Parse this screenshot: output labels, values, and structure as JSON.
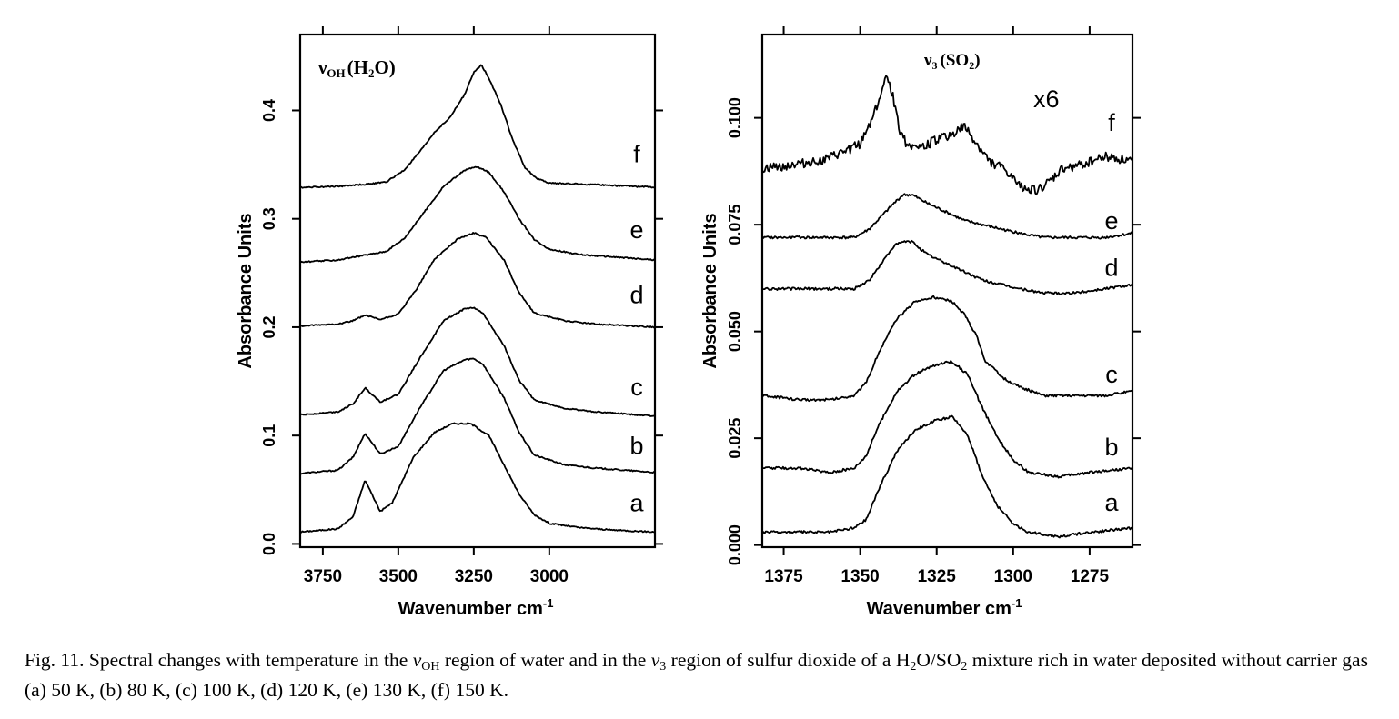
{
  "chart_data": [
    {
      "type": "line",
      "panel": "left",
      "title_parts": {
        "sym": "ν",
        "sub": "OH",
        "pre": "(H",
        "sub2": "2",
        "post": "O)"
      },
      "xlabel": "Wavenumber cm",
      "xlabel_sup": "-1",
      "ylabel": "Absorbance Units",
      "xlim": [
        3825,
        2650
      ],
      "ylim": [
        -0.003,
        0.47
      ],
      "x_ticks": [
        3750,
        3500,
        3250,
        3000
      ],
      "x_tick_labels": [
        "3750",
        "3500",
        "3250",
        "3000"
      ],
      "y_ticks": [
        0.0,
        0.1,
        0.2,
        0.3,
        0.4
      ],
      "y_tick_labels": [
        "0.0",
        "0.1",
        "0.2",
        "0.3",
        "0.4"
      ],
      "series": [
        {
          "name": "a",
          "label_y": 0.03,
          "x": [
            3825,
            3700,
            3650,
            3610,
            3560,
            3520,
            3450,
            3380,
            3320,
            3260,
            3200,
            3150,
            3100,
            3050,
            3000,
            2900,
            2800,
            2650
          ],
          "y": [
            0.011,
            0.014,
            0.025,
            0.059,
            0.03,
            0.038,
            0.08,
            0.103,
            0.111,
            0.111,
            0.1,
            0.073,
            0.046,
            0.027,
            0.019,
            0.015,
            0.013,
            0.011
          ]
        },
        {
          "name": "b",
          "label_y": 0.083,
          "x": [
            3825,
            3700,
            3650,
            3610,
            3560,
            3500,
            3430,
            3350,
            3280,
            3250,
            3220,
            3150,
            3100,
            3050,
            2950,
            2850,
            2650
          ],
          "y": [
            0.065,
            0.068,
            0.08,
            0.102,
            0.083,
            0.09,
            0.125,
            0.16,
            0.17,
            0.171,
            0.166,
            0.135,
            0.103,
            0.082,
            0.073,
            0.07,
            0.066
          ]
        },
        {
          "name": "c",
          "label_y": 0.137,
          "x": [
            3825,
            3700,
            3650,
            3610,
            3560,
            3500,
            3430,
            3350,
            3280,
            3250,
            3220,
            3150,
            3100,
            3050,
            2950,
            2850,
            2650
          ],
          "y": [
            0.119,
            0.122,
            0.129,
            0.144,
            0.131,
            0.138,
            0.171,
            0.206,
            0.217,
            0.218,
            0.213,
            0.183,
            0.151,
            0.133,
            0.125,
            0.122,
            0.118
          ]
        },
        {
          "name": "d",
          "label_y": 0.222,
          "x": [
            3825,
            3700,
            3650,
            3610,
            3560,
            3500,
            3440,
            3380,
            3300,
            3250,
            3210,
            3150,
            3100,
            3050,
            2950,
            2850,
            2650
          ],
          "y": [
            0.201,
            0.203,
            0.206,
            0.211,
            0.207,
            0.212,
            0.235,
            0.263,
            0.282,
            0.287,
            0.283,
            0.262,
            0.232,
            0.213,
            0.206,
            0.203,
            0.2
          ]
        },
        {
          "name": "e",
          "label_y": 0.282,
          "x": [
            3825,
            3700,
            3620,
            3540,
            3480,
            3420,
            3350,
            3280,
            3240,
            3200,
            3150,
            3100,
            3050,
            3000,
            2900,
            2800,
            2650
          ],
          "y": [
            0.26,
            0.262,
            0.266,
            0.27,
            0.282,
            0.304,
            0.33,
            0.345,
            0.348,
            0.343,
            0.325,
            0.3,
            0.281,
            0.272,
            0.267,
            0.265,
            0.262
          ]
        },
        {
          "name": "f",
          "label_y": 0.352,
          "x": [
            3825,
            3700,
            3600,
            3540,
            3480,
            3420,
            3380,
            3330,
            3280,
            3250,
            3225,
            3200,
            3160,
            3120,
            3080,
            3040,
            3000,
            2900,
            2800,
            2650
          ],
          "y": [
            0.329,
            0.33,
            0.332,
            0.334,
            0.345,
            0.365,
            0.38,
            0.393,
            0.415,
            0.435,
            0.442,
            0.43,
            0.405,
            0.372,
            0.347,
            0.337,
            0.333,
            0.332,
            0.331,
            0.329
          ]
        }
      ]
    },
    {
      "type": "line",
      "panel": "right",
      "title_parts": {
        "sym": "ν",
        "sub": "3",
        "pre": "(SO",
        "sub2": "2",
        "post": ")"
      },
      "annotation": "x6",
      "xlabel": "Wavenumber cm",
      "xlabel_sup": "-1",
      "ylabel": "Absorbance Units",
      "xlim": [
        1382,
        1261
      ],
      "ylim": [
        -0.0005,
        0.1195
      ],
      "x_ticks": [
        1375,
        1350,
        1325,
        1300,
        1275
      ],
      "x_tick_labels": [
        "1375",
        "1350",
        "1325",
        "1300",
        "1275"
      ],
      "y_ticks": [
        0.0,
        0.025,
        0.05,
        0.075,
        0.1
      ],
      "y_tick_labels": [
        "0.000",
        "0.025",
        "0.050",
        "0.075",
        "0.100"
      ],
      "series": [
        {
          "name": "a",
          "label_y": 0.008,
          "x": [
            1382,
            1370,
            1360,
            1352,
            1348,
            1344,
            1338,
            1332,
            1326,
            1320,
            1315,
            1310,
            1305,
            1300,
            1295,
            1285,
            1275,
            1261
          ],
          "y": [
            0.003,
            0.003,
            0.003,
            0.004,
            0.006,
            0.013,
            0.022,
            0.027,
            0.029,
            0.03,
            0.026,
            0.016,
            0.009,
            0.005,
            0.003,
            0.002,
            0.003,
            0.004
          ]
        },
        {
          "name": "b",
          "label_y": 0.021,
          "x": [
            1382,
            1370,
            1360,
            1352,
            1348,
            1344,
            1338,
            1332,
            1326,
            1320,
            1315,
            1310,
            1305,
            1300,
            1295,
            1285,
            1275,
            1261
          ],
          "y": [
            0.018,
            0.018,
            0.017,
            0.018,
            0.021,
            0.028,
            0.036,
            0.04,
            0.042,
            0.043,
            0.04,
            0.032,
            0.025,
            0.02,
            0.017,
            0.016,
            0.017,
            0.018
          ]
        },
        {
          "name": "c",
          "label_y": 0.038,
          "x": [
            1382,
            1370,
            1360,
            1352,
            1348,
            1344,
            1338,
            1332,
            1326,
            1320,
            1316,
            1312,
            1309,
            1306,
            1303,
            1298,
            1290,
            1280,
            1270,
            1261
          ],
          "y": [
            0.035,
            0.034,
            0.034,
            0.035,
            0.038,
            0.045,
            0.053,
            0.057,
            0.058,
            0.057,
            0.054,
            0.049,
            0.043,
            0.041,
            0.039,
            0.037,
            0.035,
            0.035,
            0.035,
            0.036
          ]
        },
        {
          "name": "d",
          "label_y": 0.063,
          "x": [
            1382,
            1370,
            1360,
            1352,
            1347,
            1343,
            1339,
            1336,
            1333,
            1328,
            1322,
            1316,
            1310,
            1304,
            1298,
            1290,
            1280,
            1270,
            1261
          ],
          "y": [
            0.06,
            0.06,
            0.06,
            0.06,
            0.062,
            0.066,
            0.07,
            0.071,
            0.071,
            0.068,
            0.066,
            0.064,
            0.062,
            0.061,
            0.06,
            0.059,
            0.059,
            0.06,
            0.061
          ]
        },
        {
          "name": "e",
          "label_y": 0.074,
          "x": [
            1382,
            1370,
            1360,
            1352,
            1347,
            1343,
            1339,
            1336,
            1333,
            1328,
            1322,
            1316,
            1310,
            1304,
            1298,
            1290,
            1280,
            1270,
            1261
          ],
          "y": [
            0.072,
            0.072,
            0.072,
            0.072,
            0.074,
            0.077,
            0.08,
            0.082,
            0.082,
            0.08,
            0.078,
            0.076,
            0.075,
            0.074,
            0.073,
            0.072,
            0.072,
            0.072,
            0.073
          ]
        },
        {
          "name": "f",
          "label_y": 0.097,
          "x": [
            1382,
            1372,
            1362,
            1355,
            1350,
            1346,
            1343,
            1341,
            1339,
            1337,
            1335,
            1330,
            1325,
            1320,
            1316,
            1312,
            1308,
            1303,
            1298,
            1292,
            1288,
            1284,
            1278,
            1270,
            1261
          ],
          "y": [
            0.088,
            0.089,
            0.09,
            0.092,
            0.094,
            0.1,
            0.106,
            0.11,
            0.104,
            0.097,
            0.094,
            0.093,
            0.095,
            0.096,
            0.098,
            0.094,
            0.09,
            0.088,
            0.084,
            0.083,
            0.085,
            0.088,
            0.089,
            0.091,
            0.09
          ]
        }
      ]
    }
  ],
  "caption": {
    "lead": "Fig. 11. Spectral changes with temperature in the ",
    "nu1": "ν",
    "nu1_sub": "OH",
    "mid1": " region of water and in the ",
    "nu2": "ν",
    "nu2_sub": "3",
    "mid2": " region of sulfur dioxide of a H",
    "h2": "2",
    "mid3": "O/SO",
    "so2": "2",
    "tail": " mixture rich in water deposited without carrier gas (a) 50 K, (b) 80 K, (c) 100 K, (d) 120 K, (e) 130 K, (f) 150 K."
  }
}
